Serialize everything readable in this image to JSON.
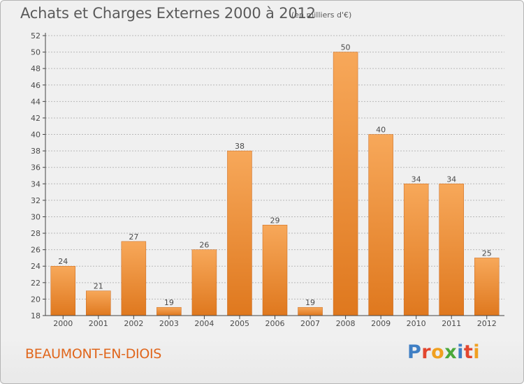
{
  "header": {
    "title": "Achats et Charges Externes 2000 à 2012",
    "unit": "(en milliers d'€)"
  },
  "footer": {
    "commune": "BEAUMONT-EN-DIOIS",
    "brand": "Proxiti",
    "brand_colors": [
      "#3f7fc4",
      "#e2462f",
      "#f0a020",
      "#4aa83a",
      "#3f7fc4",
      "#e2462f",
      "#f0a020"
    ]
  },
  "colors": {
    "bar_light": "#f7a85a",
    "bar_dark": "#df781e",
    "axis": "#444444",
    "grid": "#b8b8b8",
    "text": "#4a4a4a",
    "background": "#f0f0f0"
  },
  "chart_data": {
    "type": "bar",
    "title": "Achats et Charges Externes 2000 à 2012",
    "subtitle": "(en milliers d'€)",
    "categories": [
      "2000",
      "2001",
      "2002",
      "2003",
      "2004",
      "2005",
      "2006",
      "2007",
      "2008",
      "2009",
      "2010",
      "2011",
      "2012"
    ],
    "values": [
      24,
      21,
      27,
      19,
      26,
      38,
      29,
      19,
      50,
      40,
      34,
      34,
      25
    ],
    "ylim": [
      18,
      52
    ],
    "yticks": [
      18,
      20,
      22,
      24,
      26,
      28,
      30,
      32,
      34,
      36,
      38,
      40,
      42,
      44,
      46,
      48,
      50,
      52
    ],
    "grid": "horizontal dashed",
    "data_labels": true
  }
}
